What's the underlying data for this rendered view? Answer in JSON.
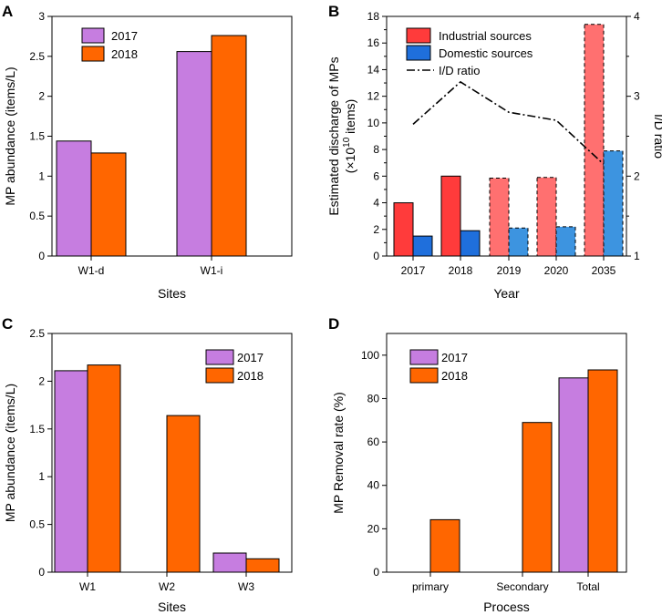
{
  "panels": [
    {
      "label": "A",
      "chart_data": {
        "type": "bar",
        "categories": [
          "W1-d",
          "W1-i"
        ],
        "series": [
          {
            "name": "2017",
            "values": [
              1.44,
              2.56
            ],
            "color": "#c67de0"
          },
          {
            "name": "2018",
            "values": [
              1.29,
              2.76
            ],
            "color": "#ff6600"
          }
        ],
        "title": "",
        "xlabel": "Sites",
        "ylabel": "MP abundance (items/L)",
        "ylim": [
          0,
          3
        ],
        "yticks": [
          0,
          0.5,
          1,
          1.5,
          2,
          2.5,
          3
        ],
        "ytick_labels": [
          "0",
          "0.5",
          "1",
          "1.5",
          "2",
          "2.5",
          "3"
        ],
        "legend_position": "top-left"
      }
    },
    {
      "label": "B",
      "chart_data": {
        "type": "bar",
        "categories": [
          "2017",
          "2018",
          "2019",
          "2020",
          "2035"
        ],
        "series": [
          {
            "name": "Industrial sources",
            "values": [
              4.0,
              6.0,
              5.85,
              5.9,
              17.4
            ],
            "color": "#ff3b3b",
            "projected_color": "#ff7070",
            "projected": [
              false,
              false,
              true,
              true,
              true
            ]
          },
          {
            "name": "Domestic sources",
            "values": [
              1.5,
              1.9,
              2.1,
              2.2,
              7.9
            ],
            "color": "#1f6fdc",
            "projected_color": "#3d94e0",
            "projected": [
              false,
              false,
              true,
              true,
              true
            ]
          }
        ],
        "ratio_series": {
          "name": "I/D ratio",
          "values": [
            2.65,
            3.18,
            2.8,
            2.7,
            2.15
          ],
          "axis": "right"
        },
        "title": "",
        "xlabel": "Year",
        "ylabel": "Estimated discharge of MPs",
        "ylabel_line2_prefix": "(×10",
        "ylabel_line2_exponent": "10",
        "ylabel_line2_suffix": " items)",
        "y2label": "I/D ratio",
        "ylim": [
          0,
          18
        ],
        "yticks": [
          0,
          2,
          4,
          6,
          8,
          10,
          12,
          14,
          16,
          18
        ],
        "ytick_labels": [
          "0",
          "2",
          "4",
          "6",
          "8",
          "10",
          "12",
          "14",
          "16",
          "18"
        ],
        "y2lim": [
          1,
          4
        ],
        "y2ticks": [
          1,
          2,
          3,
          4
        ],
        "y2tick_labels": [
          "1",
          "2",
          "3",
          "4"
        ],
        "legend_position": "top-left"
      }
    },
    {
      "label": "C",
      "chart_data": {
        "type": "bar",
        "categories": [
          "W1",
          "W2",
          "W3"
        ],
        "series": [
          {
            "name": "2017",
            "values": [
              2.11,
              0,
              0.2
            ],
            "color": "#c67de0"
          },
          {
            "name": "2018",
            "values": [
              2.17,
              1.64,
              0.14
            ],
            "color": "#ff6600"
          }
        ],
        "title": "",
        "xlabel": "Sites",
        "ylabel": "MP abundance (items/L)",
        "ylim": [
          0,
          2.5
        ],
        "yticks": [
          0,
          0.5,
          1,
          1.5,
          2,
          2.5
        ],
        "ytick_labels": [
          "0",
          "0.5",
          "1",
          "1.5",
          "2",
          "2.5"
        ],
        "legend_position": "top-right"
      }
    },
    {
      "label": "D",
      "chart_data": {
        "type": "bar",
        "categories": [
          "primary",
          "Secondary",
          "Total"
        ],
        "series": [
          {
            "name": "2017",
            "values": [
              0,
              0,
              89.5
            ],
            "color": "#c67de0"
          },
          {
            "name": "2018",
            "values": [
              24.2,
              69.0,
              93.2
            ],
            "color": "#ff6600"
          }
        ],
        "title": "",
        "xlabel": "Process",
        "ylabel": "MP Removal rate (%)",
        "ylim": [
          0,
          110
        ],
        "yticks": [
          0,
          20,
          40,
          60,
          80,
          100
        ],
        "ytick_labels": [
          "0",
          "20",
          "40",
          "60",
          "80",
          "100"
        ],
        "legend_position": "top-left"
      }
    }
  ]
}
